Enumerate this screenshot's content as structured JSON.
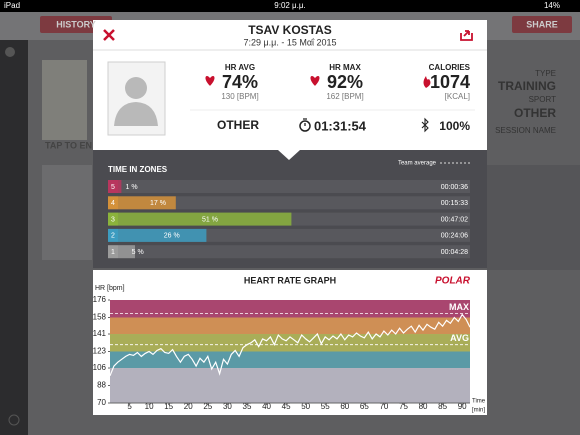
{
  "status_bar": {
    "device": "iPad",
    "time": "9:02 μ.μ.",
    "battery": "14%"
  },
  "background": {
    "history_button": "HISTORY",
    "share_button": "SHARE",
    "type_label": "TYPE",
    "type": "TRAINING",
    "sport_label": "SPORT",
    "sport": "OTHER",
    "session_name_label": "SESSION NAME",
    "tap_hint": "TAP TO EN"
  },
  "header": {
    "title": "TSAV KOSTAS",
    "subtitle": "7:29 μ.μ. - 15 Μαΐ 2015"
  },
  "summary": {
    "hr_avg": {
      "label": "HR AVG",
      "percent": "74%",
      "bpm": "130 [BPM]"
    },
    "hr_max": {
      "label": "HR MAX",
      "percent": "92%",
      "bpm": "162 [BPM]"
    },
    "calories": {
      "label": "CALORIES",
      "value": "1074",
      "unit": "[KCAL]"
    },
    "sport": "OTHER",
    "duration": "01:31:54",
    "battery": "100%"
  },
  "time_in_zones": {
    "title": "TIME IN ZONES",
    "team_average_label": "Team average",
    "zones": [
      {
        "zone": "5",
        "color": "#b8365e",
        "percent": 1,
        "percent_label": "1 %",
        "time": "00:00:36"
      },
      {
        "zone": "4",
        "color": "#d4913a",
        "percent": 17,
        "percent_label": "17 %",
        "time": "00:15:33"
      },
      {
        "zone": "3",
        "color": "#8bb33c",
        "percent": 51,
        "percent_label": "51 %",
        "time": "00:47:02"
      },
      {
        "zone": "2",
        "color": "#3d9cc0",
        "percent": 26,
        "percent_label": "26 %",
        "time": "00:24:06"
      },
      {
        "zone": "1",
        "color": "#9b9b9b",
        "percent": 5,
        "percent_label": "5 %",
        "time": "00:04:28"
      }
    ]
  },
  "heart_rate_graph": {
    "type": "line",
    "title": "HEART RATE GRAPH",
    "logo": "POLAR",
    "y_label": "HR [bpm]",
    "x_label": "Time",
    "x_unit": "[min]",
    "ylim": [
      70,
      176
    ],
    "yticks": [
      70,
      88,
      106,
      123,
      141,
      158,
      176
    ],
    "xlim": [
      0,
      92
    ],
    "xticks": [
      5,
      10,
      15,
      20,
      25,
      30,
      35,
      40,
      45,
      50,
      55,
      60,
      65,
      70,
      75,
      80,
      85,
      90
    ],
    "bands": [
      {
        "from": 158,
        "to": 176,
        "color": "#a9466f"
      },
      {
        "from": 141,
        "to": 158,
        "color": "#cf8f55"
      },
      {
        "from": 123,
        "to": 141,
        "color": "#a9ad58"
      },
      {
        "from": 106,
        "to": 123,
        "color": "#5b9aa6"
      },
      {
        "from": 70,
        "to": 106,
        "color": "#b3b1bd"
      }
    ],
    "reference_lines": [
      {
        "label": "MAX",
        "value": 162
      },
      {
        "label": "AVG",
        "value": 130
      }
    ],
    "color": "#ffffff",
    "x": [
      0,
      1,
      2,
      3,
      4,
      5,
      6,
      7,
      8,
      9,
      10,
      11,
      12,
      13,
      14,
      15,
      16,
      17,
      18,
      19,
      20,
      21,
      22,
      23,
      24,
      25,
      26,
      27,
      28,
      29,
      30,
      31,
      32,
      33,
      34,
      35,
      36,
      37,
      38,
      39,
      40,
      41,
      42,
      43,
      44,
      45,
      46,
      47,
      48,
      49,
      50,
      51,
      52,
      53,
      54,
      55,
      56,
      57,
      58,
      59,
      60,
      61,
      62,
      63,
      64,
      65,
      66,
      67,
      68,
      69,
      70,
      71,
      72,
      73,
      74,
      75,
      76,
      77,
      78,
      79,
      80,
      81,
      82,
      83,
      84,
      85,
      86,
      87,
      88,
      89,
      90,
      91,
      92
    ],
    "values": [
      98,
      108,
      112,
      115,
      118,
      120,
      119,
      122,
      118,
      121,
      123,
      120,
      124,
      126,
      122,
      121,
      125,
      118,
      112,
      118,
      120,
      115,
      108,
      116,
      112,
      118,
      105,
      112,
      100,
      115,
      110,
      120,
      124,
      118,
      127,
      130,
      132,
      135,
      128,
      136,
      134,
      138,
      130,
      140,
      136,
      134,
      138,
      135,
      132,
      140,
      136,
      133,
      137,
      141,
      131,
      138,
      135,
      139,
      136,
      141,
      135,
      140,
      138,
      142,
      139,
      137,
      143,
      136,
      141,
      138,
      144,
      140,
      145,
      141,
      147,
      142,
      146,
      149,
      143,
      150,
      145,
      151,
      148,
      146,
      153,
      149,
      155,
      152,
      158,
      154,
      161,
      156,
      148
    ]
  }
}
